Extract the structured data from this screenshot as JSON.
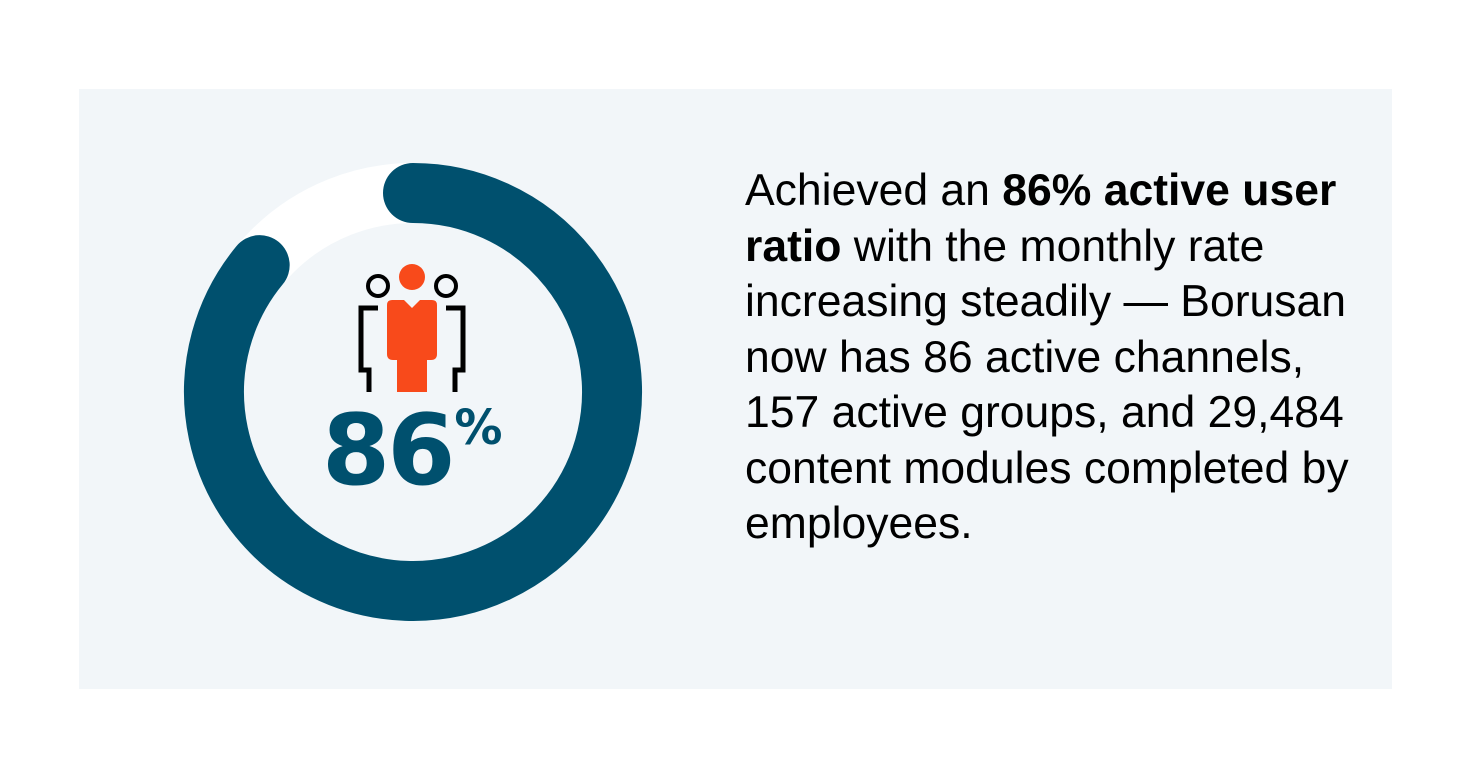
{
  "gauge": {
    "value_percent": 86,
    "label": "86",
    "unit": "%",
    "color": "#00506e",
    "track_color": "#ffffff",
    "icon": "people-group-icon",
    "icon_accent": "#f84a1b"
  },
  "description": {
    "lead": "Achieved an ",
    "highlight": "86% active user ratio",
    "rest": " with the monthly rate increasing steadily — Borusan now has 86 active channels, 157 active groups, and 29,484 content modules completed by employees."
  }
}
